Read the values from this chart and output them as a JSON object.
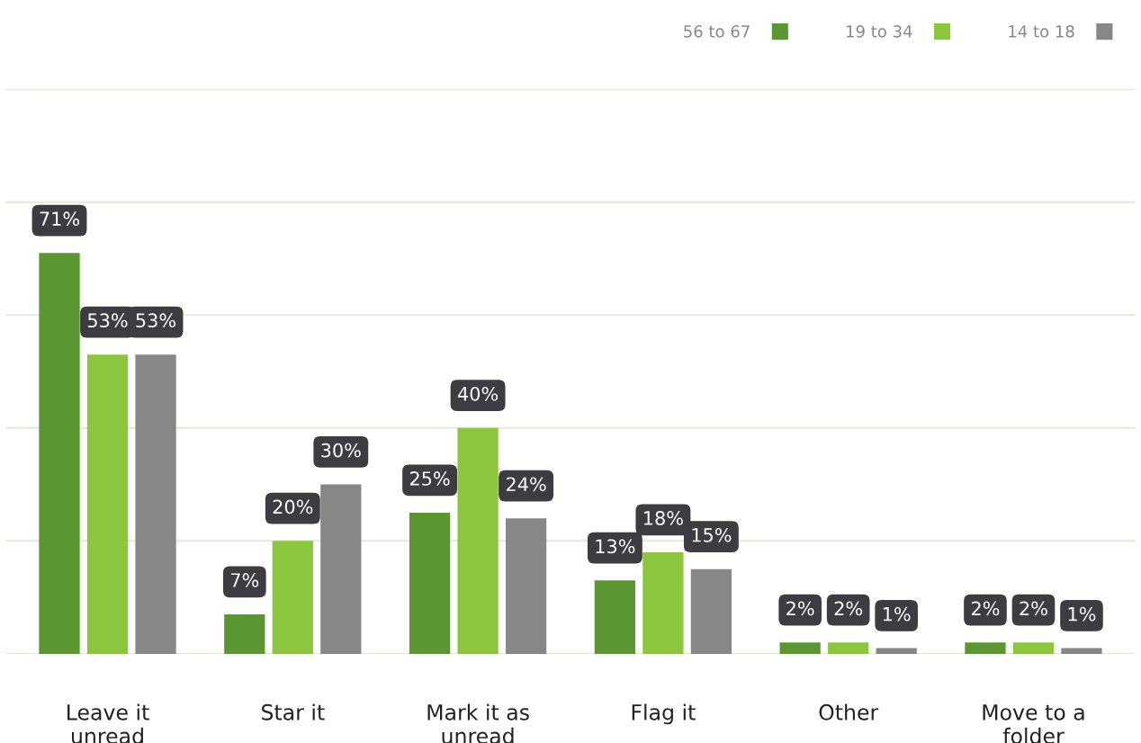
{
  "chart_data": {
    "type": "bar",
    "categories": [
      "Leave it\nunread",
      "Star it",
      "Mark it as\nunread",
      "Flag it",
      "Other",
      "Move to a\nfolder"
    ],
    "series": [
      {
        "name": "56 to 67",
        "color": "#5b9632",
        "values": [
          71,
          7,
          25,
          13,
          2,
          2
        ],
        "value_labels": [
          "71%",
          "7%",
          "25%",
          "13%",
          "2%",
          "2%"
        ]
      },
      {
        "name": "19 to 34",
        "color": "#8cc63f",
        "values": [
          53,
          20,
          40,
          18,
          2,
          2
        ],
        "value_labels": [
          "53%",
          "20%",
          "40%",
          "18%",
          "2%",
          "2%"
        ]
      },
      {
        "name": "14 to 18",
        "color": "#878787",
        "values": [
          53,
          30,
          24,
          15,
          1,
          1
        ],
        "value_labels": [
          "53%",
          "30%",
          "24%",
          "15%",
          "1%",
          "1%"
        ]
      }
    ],
    "ylim": [
      0,
      100
    ],
    "yticks": [
      0,
      20,
      40,
      60,
      80,
      100
    ],
    "grid": "y",
    "tick_labels": "x",
    "legend": "top right"
  }
}
